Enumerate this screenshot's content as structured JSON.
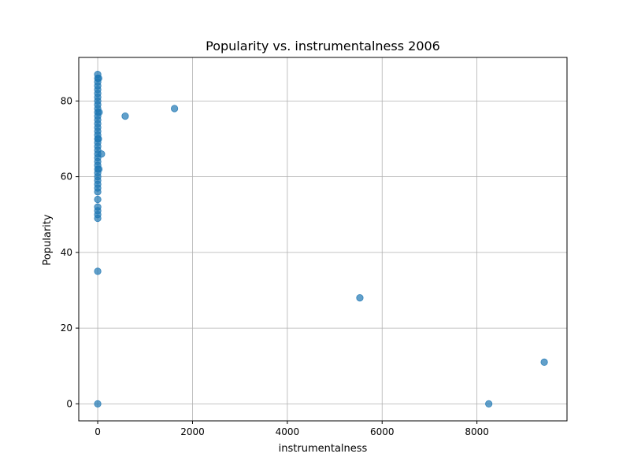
{
  "chart_data": {
    "type": "scatter",
    "title": "Popularity vs. instrumentalness 2006",
    "xlabel": "instrumentalness",
    "ylabel": "Popularity",
    "xlim": [
      -400,
      9900
    ],
    "ylim": [
      -4.5,
      91.5
    ],
    "xticks": [
      0,
      2000,
      4000,
      6000,
      8000
    ],
    "yticks": [
      0,
      20,
      40,
      60,
      80
    ],
    "grid": true,
    "marker_color": "#1f77b4",
    "points": [
      {
        "x": 0,
        "y": 87
      },
      {
        "x": 0,
        "y": 86
      },
      {
        "x": 0,
        "y": 85
      },
      {
        "x": 0,
        "y": 84
      },
      {
        "x": 0,
        "y": 83
      },
      {
        "x": 0,
        "y": 82
      },
      {
        "x": 0,
        "y": 81
      },
      {
        "x": 0,
        "y": 80
      },
      {
        "x": 0,
        "y": 79
      },
      {
        "x": 0,
        "y": 78
      },
      {
        "x": 0,
        "y": 77
      },
      {
        "x": 0,
        "y": 76
      },
      {
        "x": 0,
        "y": 75
      },
      {
        "x": 0,
        "y": 74
      },
      {
        "x": 0,
        "y": 73
      },
      {
        "x": 0,
        "y": 72
      },
      {
        "x": 0,
        "y": 71
      },
      {
        "x": 0,
        "y": 70
      },
      {
        "x": 0,
        "y": 69
      },
      {
        "x": 0,
        "y": 68
      },
      {
        "x": 0,
        "y": 67
      },
      {
        "x": 0,
        "y": 66
      },
      {
        "x": 0,
        "y": 65
      },
      {
        "x": 0,
        "y": 64
      },
      {
        "x": 0,
        "y": 63
      },
      {
        "x": 0,
        "y": 62
      },
      {
        "x": 0,
        "y": 61
      },
      {
        "x": 0,
        "y": 60
      },
      {
        "x": 0,
        "y": 59
      },
      {
        "x": 0,
        "y": 58
      },
      {
        "x": 0,
        "y": 57
      },
      {
        "x": 0,
        "y": 56
      },
      {
        "x": 0,
        "y": 54
      },
      {
        "x": 0,
        "y": 52
      },
      {
        "x": 0,
        "y": 51
      },
      {
        "x": 0,
        "y": 50
      },
      {
        "x": 0,
        "y": 49
      },
      {
        "x": 0,
        "y": 35
      },
      {
        "x": 0,
        "y": 0
      },
      {
        "x": 20,
        "y": 86
      },
      {
        "x": 30,
        "y": 77
      },
      {
        "x": 15,
        "y": 70
      },
      {
        "x": 25,
        "y": 62
      },
      {
        "x": 80,
        "y": 66
      },
      {
        "x": 580,
        "y": 76
      },
      {
        "x": 1620,
        "y": 78
      },
      {
        "x": 5530,
        "y": 28
      },
      {
        "x": 8250,
        "y": 0
      },
      {
        "x": 9420,
        "y": 11
      }
    ]
  }
}
